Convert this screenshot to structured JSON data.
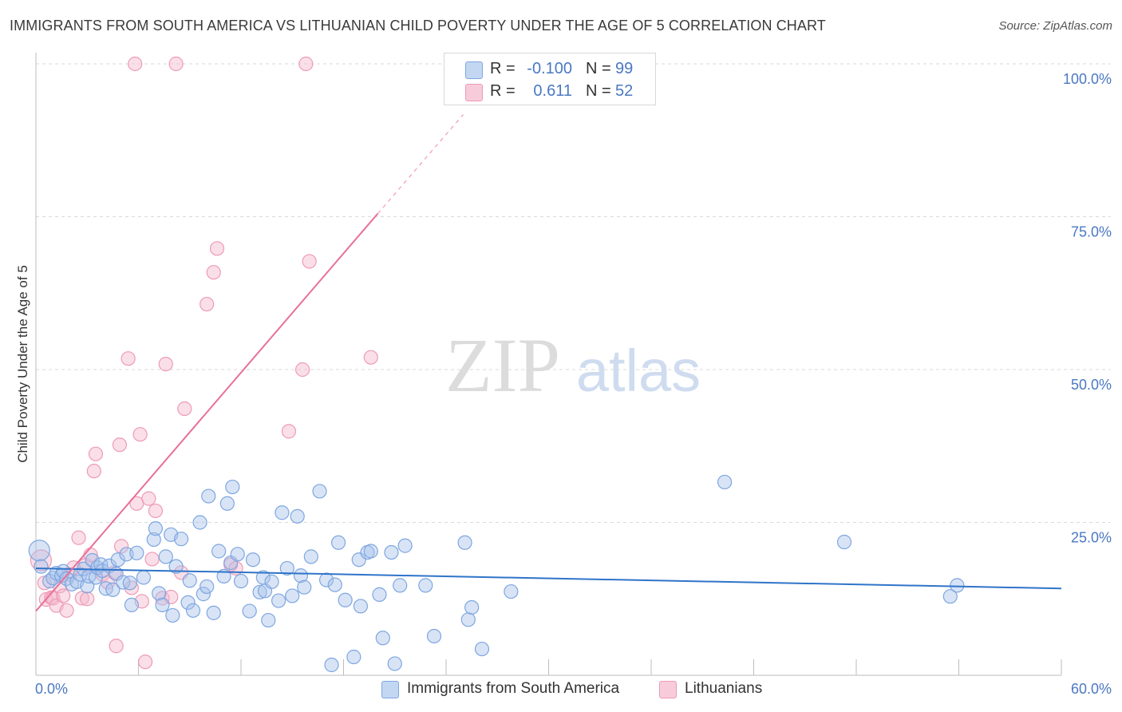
{
  "title": "IMMIGRANTS FROM SOUTH AMERICA VS LITHUANIAN CHILD POVERTY UNDER THE AGE OF 5 CORRELATION CHART",
  "source": "Source: ZipAtlas.com",
  "watermark": {
    "zip": "ZIP",
    "atlas": "atlas"
  },
  "legend": {
    "rows": [
      {
        "r_label": "R =",
        "r_value": "-0.100",
        "n_label": "N =",
        "n_value": "99"
      },
      {
        "r_label": "R =",
        "r_value": "0.611",
        "n_label": "N =",
        "n_value": "52"
      }
    ]
  },
  "colors": {
    "blue_fill": "#a8c4ec",
    "blue_stroke": "#7ea6e0",
    "blue_line": "#2f74c9",
    "pink_fill": "#f5b8cc",
    "pink_stroke": "#ee9ab6",
    "pink_line": "#e8709a",
    "tick": "#4a78c2",
    "grid": "#d9d9d9"
  },
  "chart_data": {
    "type": "scatter",
    "title": "IMMIGRANTS FROM SOUTH AMERICA VS LITHUANIAN CHILD POVERTY UNDER THE AGE OF 5 CORRELATION CHART",
    "xlabel": "",
    "ylabel": "Child Poverty Under the Age of 5",
    "xlim": [
      0,
      60
    ],
    "ylim": [
      0,
      100
    ],
    "x_tick_labels": [
      "0.0%",
      "60.0%"
    ],
    "y_tick_values": [
      25,
      50,
      75,
      100
    ],
    "y_tick_labels": [
      "25.0%",
      "50.0%",
      "75.0%",
      "100.0%"
    ],
    "series": [
      {
        "name": "Immigrants from South America",
        "color": "blue",
        "r": -0.1,
        "n": 99,
        "trend": {
          "x": [
            0,
            60
          ],
          "y": [
            17.5,
            14.2
          ]
        },
        "points": [
          [
            0.2,
            20.4
          ],
          [
            0.3,
            17.8
          ],
          [
            0.8,
            15.4
          ],
          [
            1.0,
            15.9
          ],
          [
            1.2,
            16.7
          ],
          [
            1.5,
            16.3
          ],
          [
            1.6,
            17.0
          ],
          [
            1.8,
            15.8
          ],
          [
            2.1,
            14.9
          ],
          [
            2.4,
            15.3
          ],
          [
            2.6,
            16.5
          ],
          [
            2.8,
            17.4
          ],
          [
            3.0,
            14.6
          ],
          [
            3.1,
            16.2
          ],
          [
            3.3,
            18.8
          ],
          [
            3.5,
            16.0
          ],
          [
            3.6,
            17.6
          ],
          [
            3.8,
            18.1
          ],
          [
            3.9,
            17.1
          ],
          [
            4.1,
            14.2
          ],
          [
            4.3,
            17.9
          ],
          [
            4.5,
            14.0
          ],
          [
            4.7,
            16.6
          ],
          [
            4.8,
            18.9
          ],
          [
            5.1,
            15.2
          ],
          [
            5.3,
            19.8
          ],
          [
            5.5,
            15.1
          ],
          [
            5.6,
            11.5
          ],
          [
            5.9,
            20.0
          ],
          [
            6.3,
            16.0
          ],
          [
            6.9,
            22.2
          ],
          [
            7.0,
            24.0
          ],
          [
            7.2,
            13.4
          ],
          [
            7.4,
            11.5
          ],
          [
            7.6,
            19.4
          ],
          [
            7.9,
            23.0
          ],
          [
            8.0,
            9.8
          ],
          [
            8.2,
            17.8
          ],
          [
            8.5,
            22.3
          ],
          [
            8.9,
            11.9
          ],
          [
            9.0,
            15.5
          ],
          [
            9.2,
            10.6
          ],
          [
            9.6,
            25.0
          ],
          [
            9.8,
            13.3
          ],
          [
            10.0,
            14.5
          ],
          [
            10.1,
            29.3
          ],
          [
            10.4,
            10.2
          ],
          [
            10.7,
            20.3
          ],
          [
            11.0,
            16.2
          ],
          [
            11.2,
            28.1
          ],
          [
            11.4,
            18.4
          ],
          [
            11.5,
            30.8
          ],
          [
            11.8,
            19.8
          ],
          [
            12.0,
            15.4
          ],
          [
            12.5,
            10.5
          ],
          [
            12.7,
            18.9
          ],
          [
            13.1,
            13.6
          ],
          [
            13.3,
            16.0
          ],
          [
            13.4,
            13.8
          ],
          [
            13.6,
            9.0
          ],
          [
            13.8,
            15.3
          ],
          [
            14.2,
            12.2
          ],
          [
            14.4,
            26.6
          ],
          [
            14.7,
            17.5
          ],
          [
            15.0,
            13.0
          ],
          [
            15.3,
            26.0
          ],
          [
            15.5,
            16.3
          ],
          [
            15.7,
            14.4
          ],
          [
            16.1,
            19.4
          ],
          [
            16.6,
            30.1
          ],
          [
            17.0,
            15.6
          ],
          [
            17.3,
            1.7
          ],
          [
            17.5,
            14.8
          ],
          [
            17.7,
            21.7
          ],
          [
            18.1,
            12.3
          ],
          [
            18.6,
            3.0
          ],
          [
            18.9,
            18.9
          ],
          [
            19.0,
            11.3
          ],
          [
            19.4,
            20.1
          ],
          [
            19.6,
            20.3
          ],
          [
            20.1,
            13.2
          ],
          [
            20.3,
            6.1
          ],
          [
            20.8,
            20.1
          ],
          [
            21.0,
            1.9
          ],
          [
            21.3,
            14.7
          ],
          [
            21.6,
            21.2
          ],
          [
            22.8,
            14.7
          ],
          [
            23.3,
            6.4
          ],
          [
            25.1,
            21.7
          ],
          [
            25.3,
            9.1
          ],
          [
            25.5,
            11.1
          ],
          [
            26.1,
            4.3
          ],
          [
            27.8,
            13.7
          ],
          [
            40.3,
            31.6
          ],
          [
            47.3,
            21.8
          ],
          [
            53.5,
            12.9
          ],
          [
            53.9,
            14.7
          ]
        ]
      },
      {
        "name": "Lithuanians",
        "color": "pink",
        "r": 0.611,
        "n": 52,
        "trend": {
          "x": [
            0,
            20
          ],
          "y": [
            10.5,
            75.5
          ]
        },
        "trend_dashed": {
          "x": [
            20,
            25
          ],
          "y": [
            75.5,
            91.7
          ]
        },
        "points": [
          [
            0.3,
            18.8
          ],
          [
            0.5,
            15.1
          ],
          [
            0.6,
            12.4
          ],
          [
            0.9,
            12.7
          ],
          [
            1.0,
            12.6
          ],
          [
            1.2,
            11.4
          ],
          [
            1.4,
            14.6
          ],
          [
            1.6,
            13.0
          ],
          [
            1.8,
            10.6
          ],
          [
            2.0,
            16.5
          ],
          [
            2.2,
            17.6
          ],
          [
            2.5,
            22.5
          ],
          [
            2.7,
            12.6
          ],
          [
            2.9,
            18.0
          ],
          [
            3.0,
            12.5
          ],
          [
            3.2,
            19.7
          ],
          [
            3.4,
            33.4
          ],
          [
            3.5,
            36.2
          ],
          [
            3.9,
            16.5
          ],
          [
            4.2,
            15.2
          ],
          [
            4.6,
            16.8
          ],
          [
            4.7,
            4.8
          ],
          [
            4.9,
            37.7
          ],
          [
            5.0,
            21.1
          ],
          [
            5.4,
            51.8
          ],
          [
            5.6,
            14.3
          ],
          [
            5.8,
            100.0
          ],
          [
            5.9,
            28.1
          ],
          [
            6.1,
            39.4
          ],
          [
            6.2,
            12.1
          ],
          [
            6.4,
            2.2
          ],
          [
            6.6,
            28.9
          ],
          [
            6.8,
            19.0
          ],
          [
            7.0,
            26.9
          ],
          [
            7.4,
            12.6
          ],
          [
            7.6,
            50.9
          ],
          [
            7.9,
            12.8
          ],
          [
            8.2,
            100.0
          ],
          [
            8.5,
            16.8
          ],
          [
            8.7,
            43.6
          ],
          [
            10.0,
            60.7
          ],
          [
            10.4,
            65.9
          ],
          [
            10.6,
            69.8
          ],
          [
            11.4,
            18.1
          ],
          [
            11.7,
            17.5
          ],
          [
            14.8,
            39.9
          ],
          [
            15.6,
            50.0
          ],
          [
            15.8,
            100.0
          ],
          [
            16.0,
            67.7
          ],
          [
            19.6,
            52.0
          ]
        ]
      }
    ]
  }
}
